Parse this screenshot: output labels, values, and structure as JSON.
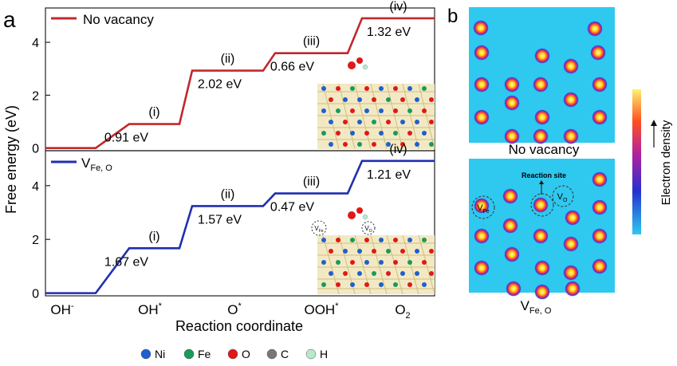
{
  "panel_labels": {
    "a": "a",
    "b": "b"
  },
  "chart_data": {
    "type": "line",
    "xlabel": "Reaction coordinate",
    "ylabel": "Free energy (eV)",
    "categories": [
      "OH",
      "OH",
      "O",
      "OOH",
      "O"
    ],
    "category_marks": [
      "-",
      "*",
      "*",
      "*",
      "2"
    ],
    "yticks": [
      0,
      2,
      4
    ],
    "ylim": [
      -0.1,
      5.3
    ],
    "series": [
      {
        "name": "No vacancy",
        "name_sub": "",
        "color": "#c0282d",
        "levels": [
          0.0,
          0.91,
          2.93,
          3.59,
          4.91
        ],
        "steps": [
          {
            "label": "(i)",
            "value": "0.91 eV"
          },
          {
            "label": "(ii)",
            "value": "2.02 eV"
          },
          {
            "label": "(iii)",
            "value": "0.66 eV"
          },
          {
            "label": "(iv)",
            "value": "1.32 eV"
          }
        ]
      },
      {
        "name": "V",
        "name_sub": "Fe, O",
        "color": "#1f2fb0",
        "levels": [
          0.0,
          1.67,
          3.24,
          3.71,
          4.92
        ],
        "steps": [
          {
            "label": "(i)",
            "value": "1.67 eV"
          },
          {
            "label": "(ii)",
            "value": "1.57 eV"
          },
          {
            "label": "(iii)",
            "value": "0.47 eV"
          },
          {
            "label": "(iv)",
            "value": "1.21 eV"
          }
        ],
        "inset_labels": [
          "V",
          "V"
        ],
        "inset_label_subs": [
          "Fe",
          "O"
        ]
      }
    ]
  },
  "legend_atoms": [
    {
      "label": "Ni",
      "color": "#1f5fcf"
    },
    {
      "label": "Fe",
      "color": "#1a9a5a"
    },
    {
      "label": "O",
      "color": "#e01818"
    },
    {
      "label": "C",
      "color": "#777777"
    },
    {
      "label": "H",
      "color": "#b8e8c8"
    }
  ],
  "panel_b": {
    "top_caption": "No vacancy",
    "bottom_caption": "V",
    "bottom_caption_sub": "Fe, O",
    "reaction_site": "Reaction site",
    "vfe_label": "V",
    "vfe_sub": "Fe",
    "vo_label": "V",
    "vo_sub": "O",
    "colorbar_label": "Electron density",
    "map_color": "#2fc8ef",
    "top_atoms": [
      [
        603,
        35
      ],
      [
        746,
        36
      ],
      [
        604,
        66
      ],
      [
        680,
        70
      ],
      [
        750,
        66
      ],
      [
        604,
        106
      ],
      [
        642,
        106
      ],
      [
        678,
        106
      ],
      [
        716,
        83
      ],
      [
        752,
        106
      ],
      [
        604,
        147
      ],
      [
        642,
        129
      ],
      [
        680,
        147
      ],
      [
        716,
        125
      ],
      [
        752,
        147
      ],
      [
        642,
        171
      ],
      [
        678,
        171
      ],
      [
        716,
        171
      ]
    ],
    "bottom_atoms": [
      [
        752,
        225
      ],
      [
        604,
        258
      ],
      [
        640,
        246
      ],
      [
        678,
        257
      ],
      [
        718,
        273
      ],
      [
        752,
        260
      ],
      [
        604,
        296
      ],
      [
        640,
        283
      ],
      [
        678,
        296
      ],
      [
        716,
        306
      ],
      [
        752,
        296
      ],
      [
        604,
        336
      ],
      [
        642,
        319
      ],
      [
        680,
        336
      ],
      [
        716,
        342
      ],
      [
        752,
        334
      ],
      [
        644,
        362
      ],
      [
        680,
        366
      ],
      [
        718,
        362
      ]
    ]
  }
}
